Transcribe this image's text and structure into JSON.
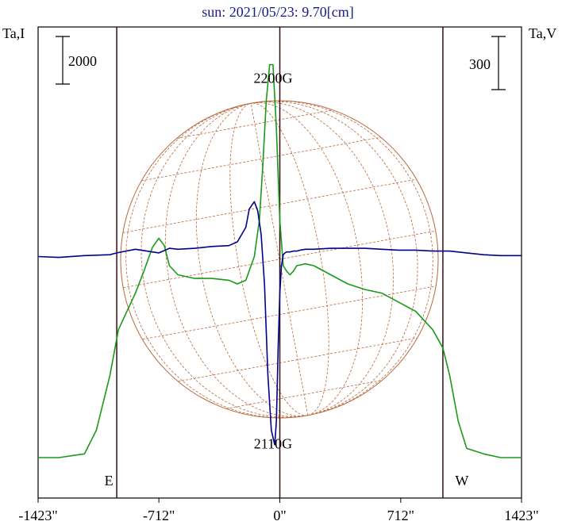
{
  "colors": {
    "intensity": "#00008b",
    "polarization": "#1a9a1a",
    "grid": "#b8683a",
    "frame": "#000000",
    "limb": "#3a0f0f",
    "title": "#1a1a8c"
  },
  "chart_data": {
    "type": "line",
    "title": "sun: 2021/05/23: 9.70[cm]",
    "left_axis_label": "Ta,I",
    "right_axis_label": "Ta,V",
    "scale_bar_left": "2000",
    "scale_bar_right": "300",
    "xlim": [
      -1423,
      1423
    ],
    "x_ticks": [
      -1423,
      -712,
      0,
      712,
      1423
    ],
    "x_tick_labels": [
      "-1423\"",
      "-712\"",
      "0\"",
      "712\"",
      "1423\""
    ],
    "solar_limb_x": [
      -960,
      960
    ],
    "limb_labels": [
      "E",
      "W"
    ],
    "annotations": [
      {
        "text": "2200G",
        "x": -40,
        "y": 950
      },
      {
        "text": "2110G",
        "x": -40,
        "y": -1050
      }
    ],
    "ylim": [
      -1200,
      1100
    ],
    "series": [
      {
        "role": "intensity",
        "x": [
          -1423,
          -1300,
          -1150,
          -1000,
          -960,
          -850,
          -712,
          -650,
          -600,
          -500,
          -400,
          -300,
          -250,
          -200,
          -180,
          -150,
          -130,
          -110,
          -90,
          -70,
          -50,
          -30,
          -20,
          -10,
          0,
          10,
          20,
          30,
          40,
          60,
          80,
          100,
          120,
          150,
          200,
          300,
          400,
          500,
          600,
          700,
          800,
          900,
          1000,
          1100,
          1200,
          1300,
          1423
        ],
        "y": [
          0,
          -5,
          5,
          10,
          20,
          40,
          20,
          45,
          40,
          45,
          55,
          60,
          80,
          160,
          260,
          300,
          250,
          120,
          -150,
          -650,
          -950,
          -1030,
          -900,
          -500,
          -200,
          -50,
          10,
          20,
          25,
          25,
          30,
          30,
          35,
          40,
          40,
          45,
          45,
          45,
          40,
          35,
          35,
          30,
          30,
          20,
          10,
          5,
          5
        ]
      },
      {
        "role": "polarization",
        "x": [
          -1423,
          -1300,
          -1150,
          -1080,
          -1000,
          -950,
          -900,
          -850,
          -800,
          -750,
          -712,
          -680,
          -650,
          -600,
          -500,
          -400,
          -300,
          -250,
          -200,
          -150,
          -120,
          -100,
          -80,
          -60,
          -40,
          -20,
          0,
          20,
          40,
          60,
          80,
          100,
          150,
          200,
          300,
          400,
          500,
          600,
          700,
          800,
          900,
          960,
          1000,
          1050,
          1100,
          1200,
          1300,
          1423
        ],
        "y": [
          -1100,
          -1100,
          -1080,
          -950,
          -650,
          -400,
          -300,
          -200,
          -80,
          50,
          100,
          60,
          -50,
          -100,
          -120,
          -120,
          -130,
          -150,
          -130,
          0,
          200,
          500,
          850,
          1050,
          1050,
          700,
          200,
          -50,
          -80,
          -100,
          -80,
          -50,
          -40,
          -50,
          -100,
          -150,
          -180,
          -200,
          -250,
          -300,
          -400,
          -500,
          -650,
          -900,
          -1050,
          -1080,
          -1100,
          -1100
        ]
      }
    ]
  }
}
